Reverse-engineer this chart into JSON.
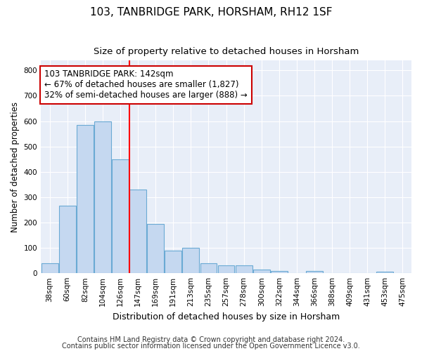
{
  "title": "103, TANBRIDGE PARK, HORSHAM, RH12 1SF",
  "subtitle": "Size of property relative to detached houses in Horsham",
  "xlabel": "Distribution of detached houses by size in Horsham",
  "ylabel": "Number of detached properties",
  "categories": [
    "38sqm",
    "60sqm",
    "82sqm",
    "104sqm",
    "126sqm",
    "147sqm",
    "169sqm",
    "191sqm",
    "213sqm",
    "235sqm",
    "257sqm",
    "278sqm",
    "300sqm",
    "322sqm",
    "344sqm",
    "366sqm",
    "388sqm",
    "409sqm",
    "431sqm",
    "453sqm",
    "475sqm"
  ],
  "values": [
    38,
    265,
    585,
    600,
    450,
    330,
    195,
    90,
    100,
    38,
    32,
    30,
    15,
    10,
    0,
    8,
    0,
    0,
    0,
    5,
    0
  ],
  "bar_color": "#c5d8f0",
  "bar_edge_color": "#6aaad4",
  "red_line_index": 5,
  "annotation_line1": "103 TANBRIDGE PARK: 142sqm",
  "annotation_line2": "← 67% of detached houses are smaller (1,827)",
  "annotation_line3": "32% of semi-detached houses are larger (888) →",
  "annotation_box_color": "#ffffff",
  "annotation_edge_color": "#cc0000",
  "ylim": [
    0,
    840
  ],
  "yticks": [
    0,
    100,
    200,
    300,
    400,
    500,
    600,
    700,
    800
  ],
  "footer1": "Contains HM Land Registry data © Crown copyright and database right 2024.",
  "footer2": "Contains public sector information licensed under the Open Government Licence v3.0.",
  "background_color": "#ffffff",
  "plot_bg_color": "#e8eef8",
  "title_fontsize": 11,
  "subtitle_fontsize": 9.5,
  "tick_fontsize": 7.5,
  "ylabel_fontsize": 8.5,
  "xlabel_fontsize": 9,
  "annotation_fontsize": 8.5,
  "footer_fontsize": 7
}
